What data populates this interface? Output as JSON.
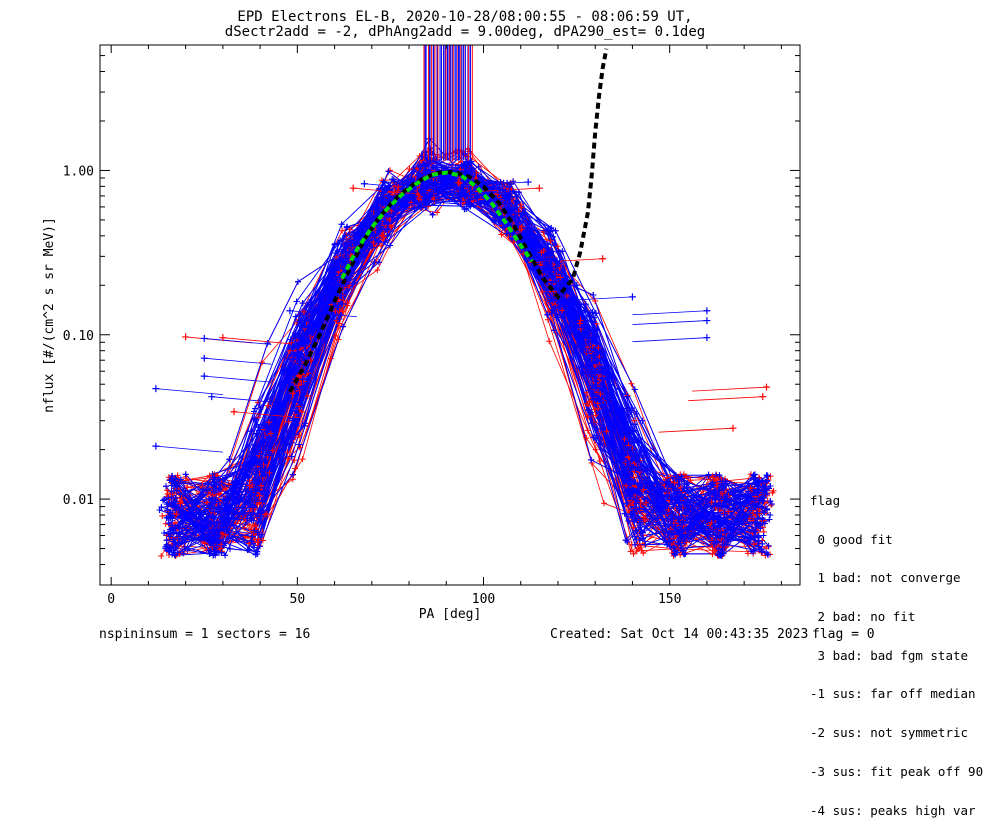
{
  "title_line1": "EPD Electrons EL-B, 2020-10-28/08:00:55 - 08:06:59 UT,",
  "title_line2": "dSectr2add = -2, dPhAng2add = 9.00deg, dPA290_est=   0.1deg",
  "footer": {
    "left": "nspininsum =  1  sectors = 16",
    "created": "Created: Sat Oct 14 00:43:35 2023",
    "flag": "flag = 0"
  },
  "legend": {
    "title": "flag",
    "items": [
      " 0 good fit",
      " 1 bad: not converge",
      " 2 bad: no fit",
      " 3 bad: bad fgm state",
      "-1 sus: far off median",
      "-2 sus: not symmetric",
      "-3 sus: fit peak off 90",
      "-4 sus: peaks high var"
    ]
  },
  "colors": {
    "red": "#ff0000",
    "blue": "#0000ff",
    "green": "#00dd00",
    "black": "#000000"
  },
  "chart_data": {
    "type": "line",
    "xlabel": "PA [deg]",
    "ylabel": "nflux [#/(cm^2 s sr MeV)]",
    "xlim": [
      -3,
      185
    ],
    "ylim": [
      0.003,
      5.8
    ],
    "yscale": "log",
    "x_ticks": [
      0,
      50,
      100,
      150
    ],
    "y_ticks": [
      0.01,
      0.1,
      1.0
    ],
    "y_tick_labels": [
      "0.01",
      "0.10",
      "1.00"
    ],
    "series_description_counts": {
      "red": 120,
      "blue": 180
    },
    "vertical_lines": {
      "x_range": [
        84,
        97
      ],
      "y_range": [
        1.15,
        5.8
      ]
    },
    "green_fit": {
      "x": [
        62,
        66,
        70,
        74,
        78,
        82,
        86,
        90,
        94,
        98,
        102,
        106,
        110,
        113
      ],
      "y": [
        0.22,
        0.33,
        0.45,
        0.58,
        0.71,
        0.83,
        0.94,
        0.97,
        0.93,
        0.8,
        0.64,
        0.48,
        0.35,
        0.28
      ]
    },
    "black_dashed": {
      "x": [
        48,
        52,
        56,
        60,
        64,
        68,
        72,
        76,
        80,
        84,
        88,
        92,
        96,
        100,
        104,
        108,
        112,
        116,
        120,
        124,
        126,
        128,
        129,
        130,
        131,
        132,
        133
      ],
      "y": [
        0.045,
        0.065,
        0.1,
        0.16,
        0.25,
        0.38,
        0.52,
        0.66,
        0.79,
        0.9,
        0.97,
        0.98,
        0.92,
        0.8,
        0.64,
        0.47,
        0.32,
        0.22,
        0.17,
        0.22,
        0.32,
        0.55,
        0.9,
        1.7,
        2.8,
        4.2,
        5.5
      ]
    },
    "outer_markers": [
      {
        "x": 20,
        "y": 0.097,
        "c": "red"
      },
      {
        "x": 25,
        "y": 0.095,
        "c": "blue"
      },
      {
        "x": 30,
        "y": 0.096,
        "c": "red"
      },
      {
        "x": 25,
        "y": 0.072,
        "c": "blue"
      },
      {
        "x": 25,
        "y": 0.056,
        "c": "blue"
      },
      {
        "x": 12,
        "y": 0.047,
        "c": "blue"
      },
      {
        "x": 27,
        "y": 0.042,
        "c": "blue"
      },
      {
        "x": 12,
        "y": 0.021,
        "c": "blue"
      },
      {
        "x": 33,
        "y": 0.034,
        "c": "red"
      },
      {
        "x": 48,
        "y": 0.14,
        "c": "blue"
      },
      {
        "x": 160,
        "y": 0.14,
        "c": "blue"
      },
      {
        "x": 160,
        "y": 0.122,
        "c": "blue"
      },
      {
        "x": 160,
        "y": 0.096,
        "c": "blue"
      },
      {
        "x": 176,
        "y": 0.048,
        "c": "red"
      },
      {
        "x": 175,
        "y": 0.042,
        "c": "red"
      },
      {
        "x": 167,
        "y": 0.027,
        "c": "red"
      },
      {
        "x": 140,
        "y": 0.17,
        "c": "blue"
      },
      {
        "x": 132,
        "y": 0.29,
        "c": "red"
      },
      {
        "x": 115,
        "y": 0.78,
        "c": "red"
      },
      {
        "x": 68,
        "y": 0.83,
        "c": "blue"
      },
      {
        "x": 65,
        "y": 0.78,
        "c": "red"
      },
      {
        "x": 112,
        "y": 0.85,
        "c": "blue"
      }
    ]
  }
}
